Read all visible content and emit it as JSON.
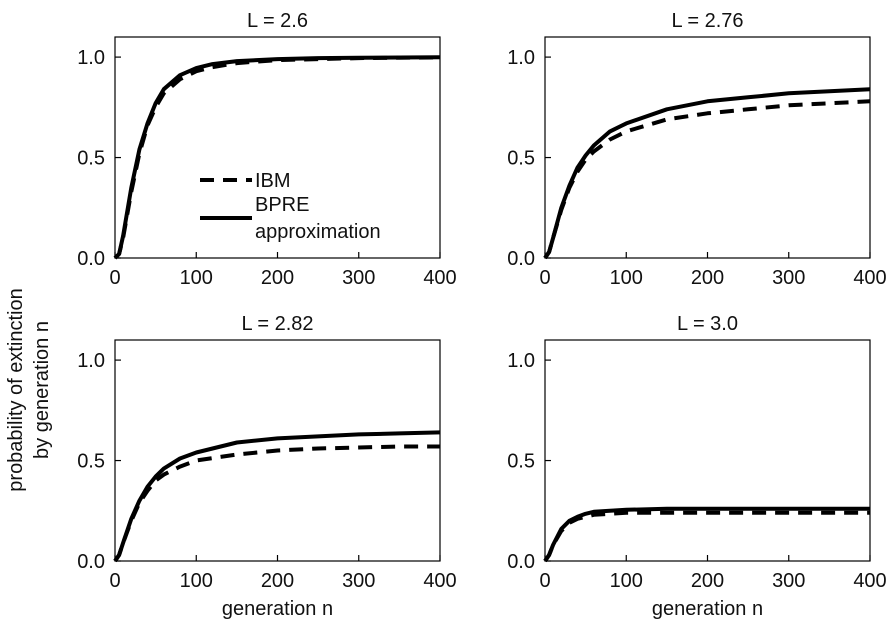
{
  "chart_data": {
    "type": "line",
    "ylabel_lines": [
      "probability of extinction",
      "by generation n"
    ],
    "panels": [
      {
        "title": "L = 2.6",
        "xlabel": "",
        "xlim": [
          0,
          400
        ],
        "ylim": [
          0,
          1.1
        ],
        "xticks": [
          0,
          100,
          200,
          300,
          400
        ],
        "yticks": [
          0.0,
          0.5,
          1.0
        ],
        "xtick_labels": [
          "0",
          "100",
          "200",
          "300",
          "400"
        ],
        "ytick_labels": [
          "0.0",
          "0.5",
          "1.0"
        ],
        "show_legend": true,
        "series": [
          {
            "name": "IBM",
            "style": "dashed",
            "x": [
              0,
              5,
              10,
              20,
              30,
              40,
              50,
              60,
              80,
              100,
              120,
              150,
              200,
              250,
              300,
              350,
              400
            ],
            "y": [
              0,
              0.02,
              0.1,
              0.33,
              0.52,
              0.66,
              0.75,
              0.82,
              0.89,
              0.93,
              0.95,
              0.97,
              0.985,
              0.99,
              0.995,
              0.997,
              0.998
            ]
          },
          {
            "name": "BPRE approximation",
            "style": "solid",
            "x": [
              0,
              5,
              10,
              20,
              30,
              40,
              50,
              60,
              80,
              100,
              120,
              150,
              200,
              250,
              300,
              350,
              400
            ],
            "y": [
              0,
              0.02,
              0.11,
              0.35,
              0.54,
              0.67,
              0.77,
              0.84,
              0.91,
              0.945,
              0.965,
              0.98,
              0.99,
              0.995,
              0.997,
              0.998,
              0.999
            ]
          }
        ]
      },
      {
        "title": "L = 2.76",
        "xlabel": "",
        "xlim": [
          0,
          400
        ],
        "ylim": [
          0,
          1.1
        ],
        "xticks": [
          0,
          100,
          200,
          300,
          400
        ],
        "yticks": [
          0.0,
          0.5,
          1.0
        ],
        "xtick_labels": [
          "0",
          "100",
          "200",
          "300",
          "400"
        ],
        "ytick_labels": [
          "0.0",
          "0.5",
          "1.0"
        ],
        "show_legend": false,
        "series": [
          {
            "name": "IBM",
            "style": "dashed",
            "x": [
              0,
              5,
              10,
              20,
              30,
              40,
              50,
              60,
              80,
              100,
              150,
              200,
              250,
              300,
              350,
              400
            ],
            "y": [
              0,
              0.03,
              0.1,
              0.24,
              0.35,
              0.43,
              0.49,
              0.53,
              0.59,
              0.63,
              0.69,
              0.72,
              0.74,
              0.76,
              0.77,
              0.78
            ]
          },
          {
            "name": "BPRE approximation",
            "style": "solid",
            "x": [
              0,
              5,
              10,
              20,
              30,
              40,
              50,
              60,
              80,
              100,
              150,
              200,
              250,
              300,
              350,
              400
            ],
            "y": [
              0,
              0.03,
              0.1,
              0.25,
              0.36,
              0.45,
              0.51,
              0.56,
              0.63,
              0.67,
              0.74,
              0.78,
              0.8,
              0.82,
              0.83,
              0.84
            ]
          }
        ]
      },
      {
        "title": "L = 2.82",
        "xlabel": "generation n",
        "xlim": [
          0,
          400
        ],
        "ylim": [
          0,
          1.1
        ],
        "xticks": [
          0,
          100,
          200,
          300,
          400
        ],
        "yticks": [
          0.0,
          0.5,
          1.0
        ],
        "xtick_labels": [
          "0",
          "100",
          "200",
          "300",
          "400"
        ],
        "ytick_labels": [
          "0.0",
          "0.5",
          "1.0"
        ],
        "show_legend": false,
        "series": [
          {
            "name": "IBM",
            "style": "dashed",
            "x": [
              0,
              5,
              10,
              20,
              30,
              40,
              50,
              60,
              80,
              100,
              150,
              200,
              250,
              300,
              350,
              400
            ],
            "y": [
              0,
              0.03,
              0.09,
              0.2,
              0.29,
              0.35,
              0.4,
              0.43,
              0.47,
              0.5,
              0.53,
              0.55,
              0.56,
              0.565,
              0.57,
              0.57
            ]
          },
          {
            "name": "BPRE approximation",
            "style": "solid",
            "x": [
              0,
              5,
              10,
              20,
              30,
              40,
              50,
              60,
              80,
              100,
              150,
              200,
              250,
              300,
              350,
              400
            ],
            "y": [
              0,
              0.03,
              0.09,
              0.21,
              0.3,
              0.37,
              0.42,
              0.46,
              0.51,
              0.54,
              0.59,
              0.61,
              0.62,
              0.63,
              0.635,
              0.64
            ]
          }
        ]
      },
      {
        "title": "L = 3.0",
        "xlabel": "generation n",
        "xlim": [
          0,
          400
        ],
        "ylim": [
          0,
          1.1
        ],
        "xticks": [
          0,
          100,
          200,
          300,
          400
        ],
        "yticks": [
          0.0,
          0.5,
          1.0
        ],
        "xtick_labels": [
          "0",
          "100",
          "200",
          "300",
          "400"
        ],
        "ytick_labels": [
          "0.0",
          "0.5",
          "1.0"
        ],
        "show_legend": false,
        "series": [
          {
            "name": "IBM",
            "style": "dashed",
            "x": [
              0,
              5,
              10,
              20,
              30,
              40,
              50,
              60,
              80,
              100,
              150,
              200,
              300,
              400
            ],
            "y": [
              0,
              0.03,
              0.08,
              0.15,
              0.19,
              0.21,
              0.22,
              0.23,
              0.235,
              0.24,
              0.24,
              0.24,
              0.24,
              0.24
            ]
          },
          {
            "name": "BPRE approximation",
            "style": "solid",
            "x": [
              0,
              5,
              10,
              20,
              30,
              40,
              50,
              60,
              80,
              100,
              150,
              200,
              300,
              400
            ],
            "y": [
              0,
              0.03,
              0.08,
              0.16,
              0.2,
              0.22,
              0.235,
              0.245,
              0.25,
              0.255,
              0.26,
              0.26,
              0.26,
              0.26
            ]
          }
        ]
      }
    ]
  }
}
